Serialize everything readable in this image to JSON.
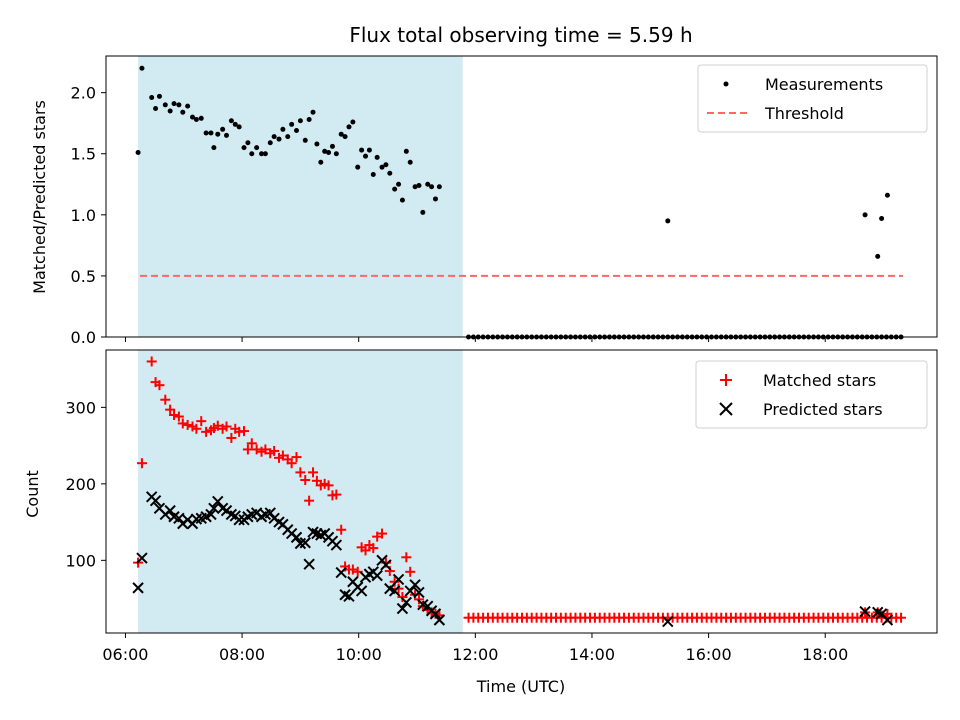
{
  "chart_data": [
    {
      "type": "scatter",
      "title": "Flux total observing time = 5.59 h",
      "xlabel": "",
      "ylabel": "Matched/Predicted stars",
      "xlim": [
        "05:40",
        "19:55"
      ],
      "ylim": [
        0,
        2.3
      ],
      "yticks": [
        "0.0",
        "0.5",
        "1.0",
        "1.5",
        "2.0"
      ],
      "grid": false,
      "legend_position": "top-right",
      "shaded_span": {
        "start": "06:13",
        "end": "11:47",
        "color": "#add8e6"
      },
      "series": [
        {
          "name": "Measurements",
          "marker": "dot",
          "color": "#000000",
          "points": [
            [
              "06:13",
              1.51
            ],
            [
              "06:17",
              2.2
            ],
            [
              "06:27",
              1.96
            ],
            [
              "06:31",
              1.87
            ],
            [
              "06:35",
              1.97
            ],
            [
              "06:41",
              1.9
            ],
            [
              "06:46",
              1.85
            ],
            [
              "06:50",
              1.91
            ],
            [
              "06:55",
              1.9
            ],
            [
              "06:59",
              1.84
            ],
            [
              "07:04",
              1.89
            ],
            [
              "07:09",
              1.8
            ],
            [
              "07:13",
              1.78
            ],
            [
              "07:18",
              1.79
            ],
            [
              "07:23",
              1.67
            ],
            [
              "07:28",
              1.67
            ],
            [
              "07:31",
              1.55
            ],
            [
              "07:35",
              1.66
            ],
            [
              "07:40",
              1.7
            ],
            [
              "07:44",
              1.65
            ],
            [
              "07:49",
              1.77
            ],
            [
              "07:53",
              1.74
            ],
            [
              "07:57",
              1.72
            ],
            [
              "08:02",
              1.55
            ],
            [
              "08:06",
              1.59
            ],
            [
              "08:10",
              1.5
            ],
            [
              "08:15",
              1.55
            ],
            [
              "08:20",
              1.5
            ],
            [
              "08:24",
              1.5
            ],
            [
              "08:29",
              1.59
            ],
            [
              "08:33",
              1.64
            ],
            [
              "08:38",
              1.62
            ],
            [
              "08:42",
              1.7
            ],
            [
              "08:47",
              1.64
            ],
            [
              "08:51",
              1.74
            ],
            [
              "08:56",
              1.69
            ],
            [
              "09:00",
              1.77
            ],
            [
              "09:05",
              1.61
            ],
            [
              "09:09",
              1.78
            ],
            [
              "09:13",
              1.84
            ],
            [
              "09:17",
              1.58
            ],
            [
              "09:21",
              1.43
            ],
            [
              "09:25",
              1.52
            ],
            [
              "09:29",
              1.51
            ],
            [
              "09:33",
              1.56
            ],
            [
              "09:37",
              1.5
            ],
            [
              "09:42",
              1.66
            ],
            [
              "09:46",
              1.64
            ],
            [
              "09:50",
              1.72
            ],
            [
              "09:54",
              1.76
            ],
            [
              "09:59",
              1.39
            ],
            [
              "10:03",
              1.53
            ],
            [
              "10:07",
              1.48
            ],
            [
              "10:11",
              1.53
            ],
            [
              "10:15",
              1.33
            ],
            [
              "10:19",
              1.47
            ],
            [
              "10:24",
              1.39
            ],
            [
              "10:28",
              1.41
            ],
            [
              "10:32",
              1.34
            ],
            [
              "10:37",
              1.21
            ],
            [
              "10:41",
              1.25
            ],
            [
              "10:45",
              1.12
            ],
            [
              "10:49",
              1.52
            ],
            [
              "10:53",
              1.43
            ],
            [
              "10:58",
              1.23
            ],
            [
              "11:02",
              1.24
            ],
            [
              "11:06",
              1.02
            ],
            [
              "11:11",
              1.25
            ],
            [
              "11:15",
              1.23
            ],
            [
              "11:19",
              1.13
            ],
            [
              "11:23",
              1.23
            ],
            [
              "15:18",
              0.95
            ],
            [
              "18:41",
              1.0
            ],
            [
              "18:54",
              0.66
            ],
            [
              "18:58",
              0.97
            ],
            [
              "19:04",
              1.16
            ]
          ],
          "zeros": {
            "from": "11:53",
            "to": "19:19",
            "step_minutes": 5
          }
        },
        {
          "name": "Threshold",
          "marker": "dashed-line",
          "color": "#ff6666",
          "x": [
            "06:15",
            "19:20"
          ],
          "value": 0.5
        }
      ]
    },
    {
      "type": "scatter",
      "title": "",
      "xlabel": "Time (UTC)",
      "ylabel": "Count",
      "xlim": [
        "05:40",
        "19:55"
      ],
      "ylim": [
        5,
        375
      ],
      "xticks": [
        "06:00",
        "08:00",
        "10:00",
        "12:00",
        "14:00",
        "16:00",
        "18:00"
      ],
      "yticks": [
        "100",
        "200",
        "300"
      ],
      "grid": false,
      "legend_position": "top-right",
      "series": [
        {
          "name": "Matched stars",
          "marker": "plus",
          "color": "#ff0000",
          "points": [
            [
              "06:13",
              97
            ],
            [
              "06:17",
              227
            ],
            [
              "06:27",
              360
            ],
            [
              "06:31",
              333
            ],
            [
              "06:35",
              329
            ],
            [
              "06:41",
              310
            ],
            [
              "06:46",
              297
            ],
            [
              "06:50",
              290
            ],
            [
              "06:55",
              288
            ],
            [
              "06:59",
              279
            ],
            [
              "07:04",
              277
            ],
            [
              "07:09",
              275
            ],
            [
              "07:13",
              272
            ],
            [
              "07:18",
              282
            ],
            [
              "07:23",
              268
            ],
            [
              "07:28",
              270
            ],
            [
              "07:31",
              273
            ],
            [
              "07:35",
              276
            ],
            [
              "07:40",
              272
            ],
            [
              "07:44",
              275
            ],
            [
              "07:49",
              260
            ],
            [
              "07:53",
              272
            ],
            [
              "07:57",
              268
            ],
            [
              "08:02",
              269
            ],
            [
              "08:06",
              245
            ],
            [
              "08:10",
              253
            ],
            [
              "08:15",
              245
            ],
            [
              "08:20",
              242
            ],
            [
              "08:24",
              245
            ],
            [
              "08:29",
              240
            ],
            [
              "08:33",
              243
            ],
            [
              "08:38",
              234
            ],
            [
              "08:42",
              237
            ],
            [
              "08:47",
              232
            ],
            [
              "08:51",
              227
            ],
            [
              "08:56",
              235
            ],
            [
              "09:00",
              215
            ],
            [
              "09:05",
              205
            ],
            [
              "09:09",
              178
            ],
            [
              "09:13",
              215
            ],
            [
              "09:17",
              204
            ],
            [
              "09:21",
              198
            ],
            [
              "09:25",
              200
            ],
            [
              "09:29",
              198
            ],
            [
              "09:33",
              185
            ],
            [
              "09:37",
              186
            ],
            [
              "09:42",
              140
            ],
            [
              "09:46",
              92
            ],
            [
              "09:50",
              88
            ],
            [
              "09:54",
              88
            ],
            [
              "09:59",
              85
            ],
            [
              "10:03",
              117
            ],
            [
              "10:07",
              113
            ],
            [
              "10:11",
              120
            ],
            [
              "10:15",
              116
            ],
            [
              "10:19",
              131
            ],
            [
              "10:24",
              135
            ],
            [
              "10:28",
              97
            ],
            [
              "10:32",
              86
            ],
            [
              "10:37",
              72
            ],
            [
              "10:41",
              63
            ],
            [
              "10:45",
              52
            ],
            [
              "10:49",
              104
            ],
            [
              "10:53",
              85
            ],
            [
              "10:58",
              55
            ],
            [
              "11:02",
              49
            ],
            [
              "11:06",
              40
            ],
            [
              "11:11",
              35
            ],
            [
              "11:15",
              32
            ],
            [
              "11:19",
              30
            ],
            [
              "11:23",
              28
            ],
            [
              "18:41",
              32
            ],
            [
              "18:54",
              32
            ],
            [
              "18:58",
              28
            ],
            [
              "19:04",
              30
            ]
          ],
          "baseline": {
            "from": "11:53",
            "to": "19:19",
            "step_minutes": 5,
            "value": 25
          }
        },
        {
          "name": "Predicted stars",
          "marker": "x",
          "color": "#000000",
          "points": [
            [
              "06:13",
              64
            ],
            [
              "06:17",
              103
            ],
            [
              "06:27",
              183
            ],
            [
              "06:31",
              178
            ],
            [
              "06:35",
              168
            ],
            [
              "06:41",
              160
            ],
            [
              "06:46",
              165
            ],
            [
              "06:50",
              157
            ],
            [
              "06:55",
              155
            ],
            [
              "06:59",
              148
            ],
            [
              "07:04",
              153
            ],
            [
              "07:09",
              148
            ],
            [
              "07:13",
              154
            ],
            [
              "07:18",
              155
            ],
            [
              "07:23",
              157
            ],
            [
              "07:28",
              160
            ],
            [
              "07:31",
              168
            ],
            [
              "07:35",
              177
            ],
            [
              "07:40",
              168
            ],
            [
              "07:44",
              165
            ],
            [
              "07:49",
              160
            ],
            [
              "07:53",
              158
            ],
            [
              "07:57",
              153
            ],
            [
              "08:02",
              153
            ],
            [
              "08:06",
              157
            ],
            [
              "08:10",
              160
            ],
            [
              "08:15",
              162
            ],
            [
              "08:20",
              157
            ],
            [
              "08:24",
              160
            ],
            [
              "08:29",
              162
            ],
            [
              "08:33",
              155
            ],
            [
              "08:38",
              150
            ],
            [
              "08:42",
              147
            ],
            [
              "08:47",
              140
            ],
            [
              "08:51",
              135
            ],
            [
              "08:56",
              130
            ],
            [
              "09:00",
              122
            ],
            [
              "09:05",
              123
            ],
            [
              "09:09",
              95
            ],
            [
              "09:13",
              137
            ],
            [
              "09:17",
              135
            ],
            [
              "09:21",
              133
            ],
            [
              "09:25",
              135
            ],
            [
              "09:29",
              130
            ],
            [
              "09:33",
              125
            ],
            [
              "09:37",
              120
            ],
            [
              "09:42",
              84
            ],
            [
              "09:46",
              55
            ],
            [
              "09:50",
              53
            ],
            [
              "09:54",
              72
            ],
            [
              "09:59",
              65
            ],
            [
              "10:03",
              60
            ],
            [
              "10:07",
              78
            ],
            [
              "10:11",
              82
            ],
            [
              "10:15",
              85
            ],
            [
              "10:19",
              80
            ],
            [
              "10:24",
              100
            ],
            [
              "10:28",
              94
            ],
            [
              "10:32",
              63
            ],
            [
              "10:37",
              60
            ],
            [
              "10:41",
              75
            ],
            [
              "10:45",
              37
            ],
            [
              "10:49",
              45
            ],
            [
              "10:53",
              60
            ],
            [
              "10:58",
              68
            ],
            [
              "11:02",
              58
            ],
            [
              "11:06",
              42
            ],
            [
              "11:11",
              40
            ],
            [
              "11:15",
              34
            ],
            [
              "11:19",
              30
            ],
            [
              "11:23",
              22
            ],
            [
              "15:18",
              20
            ],
            [
              "18:41",
              33
            ],
            [
              "18:54",
              32
            ],
            [
              "18:58",
              30
            ],
            [
              "19:04",
              22
            ]
          ]
        }
      ]
    }
  ]
}
